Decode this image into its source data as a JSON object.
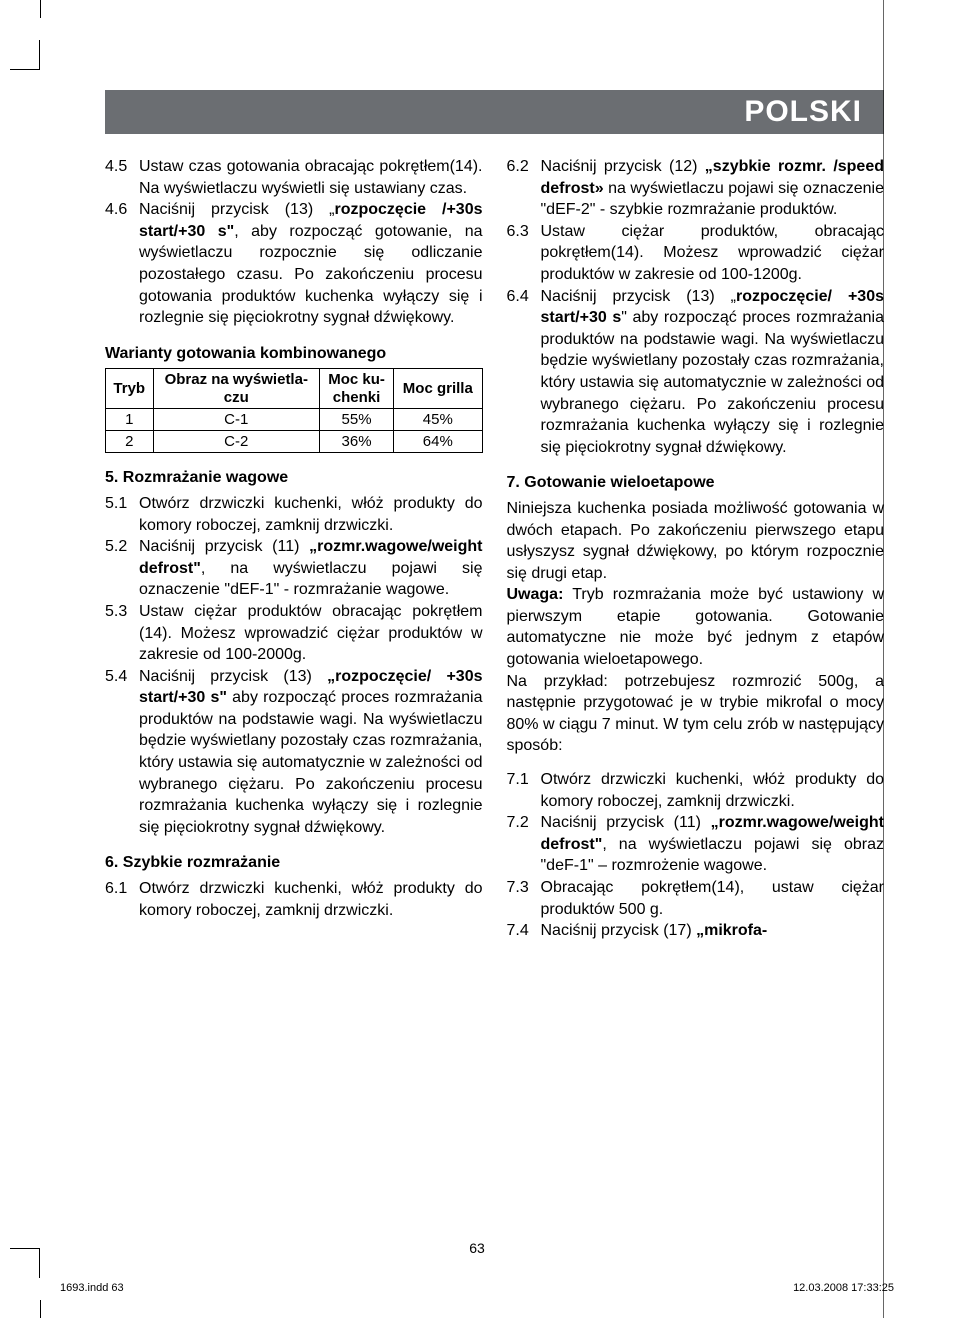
{
  "banner": {
    "text": "POLSKI",
    "bg": "#6b6e72",
    "fg": "#ffffff",
    "fontsize": 30
  },
  "left": {
    "items_a": [
      {
        "n": "4.5",
        "t": "Ustaw czas gotowania obracając pokrętłem(14). Na wyświetlaczu wyświetli się ustawiany czas."
      },
      {
        "n": "4.6",
        "t_html": "Naciśnij przycisk (13) „<b>rozpoczęcie /+30s start/+30 s\"</b>, aby rozpocząć gotowanie, na wyświetlaczu rozpocznie się odliczanie pozostałego czasu. Po zakończeniu procesu gotowania produktów kuchenka wyłączy się i rozlegnie się pięciokrotny sygnał dźwiękowy."
      }
    ],
    "combi_title": "Warianty gotowania kombinowanego",
    "table": {
      "headers": [
        "Tryb",
        "Obraz na wyświetla-czu",
        "Moc ku-chenki",
        "Moc grilla"
      ],
      "rows": [
        [
          "1",
          "C-1",
          "55%",
          "45%"
        ],
        [
          "2",
          "C-2",
          "36%",
          "64%"
        ]
      ]
    },
    "sec5_title": "5. Rozmrażanie wagowe",
    "items_5": [
      {
        "n": "5.1",
        "t": "Otwórz drzwiczki kuchenki, włóż produkty do komory roboczej, zamknij drzwiczki."
      },
      {
        "n": "5.2",
        "t_html": "Naciśnij przycisk (11) <b>„rozmr.wagowe/weight defrost\"</b>, na wyświetlaczu pojawi się oznaczenie  \"dEF-1\" - rozmrażanie wagowe."
      },
      {
        "n": "5.3",
        "t": "Ustaw ciężar produktów obracając pokrętłem (14). Możesz wprowadzić ciężar produktów w zakresie od 100-2000g."
      },
      {
        "n": "5.4",
        "t_html": "Naciśnij przycisk (13) <b>„rozpoczęcie/ +30s start/+30 s\"</b> aby rozpocząć proces rozmrażania  produktów na podstawie wagi. Na wyświetlaczu będzie wyświetlany  pozostały czas rozmrażania, który  ustawia się automatycznie w zależności od wybranego ciężaru. Po zakończeniu procesu rozmrażania kuchenka wyłączy się i rozlegnie się pięciokrotny sygnał dźwiękowy."
      }
    ],
    "sec6_title": "6. Szybkie rozmrażanie",
    "items_6": [
      {
        "n": "6.1",
        "t": "Otwórz drzwiczki kuchenki, włóż produkty do komory roboczej, zamknij drzwiczki."
      }
    ]
  },
  "right": {
    "items_6b": [
      {
        "n": "6.2",
        "t_html": "Naciśnij przycisk (12) <b>„szybkie rozmr. /speed defrost»</b> na wyświetlaczu pojawi się oznaczenie \"dEF-2\" -  szybkie rozmrażanie produktów."
      },
      {
        "n": "6.3",
        "t": "Ustaw ciężar produktów, obracając pokrętłem(14). Możesz wprowadzić ciężar produktów w zakresie od 100-1200g."
      },
      {
        "n": "6.4",
        "t_html": "Naciśnij przycisk (13) „<b>rozpoczęcie/ +30s start/+30 s</b>\" aby rozpocząć proces rozmrażania  produktów na podstawie wagi. Na wyświetlaczu będzie wyświetlany  pozostały czas rozmrażania, który  ustawia się automatycznie w zależności od wybranego ciężaru. Po zakończeniu procesu rozmrażania kuchenka wyłączy się i rozlegnie się pięciokrotny sygnał dźwiękowy."
      }
    ],
    "sec7_title": "7. Gotowanie wieloetapowe",
    "sec7_para1": "Niniejsza kuchenka posiada możliwość gotowania w  dwóch etapach. Po zakończeniu pierwszego etapu usłyszysz sygnał dźwiękowy, po którym rozpocznie się drugi etap.",
    "sec7_para2_html": "<b>Uwaga:</b> Tryb rozmrażania może być ustawiony w pierwszym etapie gotowania. Gotowanie automatyczne nie może być jednym z etapów gotowania wieloetapowego.",
    "sec7_para3": " Na przykład: potrzebujesz rozmrozić 500g, a następnie przygotować je w trybie mikrofal o mocy 80% w ciągu 7 minut. W tym celu zrób w następujący sposób:",
    "items_7": [
      {
        "n": "7.1",
        "t": "Otwórz drzwiczki kuchenki, włóż produkty do komory roboczej, zamknij drzwiczki."
      },
      {
        "n": "7.2",
        "t_html": "Naciśnij przycisk (11) <b>„rozmr.wagowe/weight defrost\"</b>, na wyświetlaczu pojawi się obraz \"deF-1\" – rozmrożenie wagowe."
      },
      {
        "n": "7.3",
        "t": "Obracając pokrętłem(14), ustaw ciężar produktów 500 g."
      },
      {
        "n": "7.4",
        "t_html": "Naciśnij przycisk (17) <b>„mikrofa-</b>"
      }
    ]
  },
  "page_number": "63",
  "footer": {
    "left": "1693.indd   63",
    "right": "12.03.2008   17:33:25"
  }
}
